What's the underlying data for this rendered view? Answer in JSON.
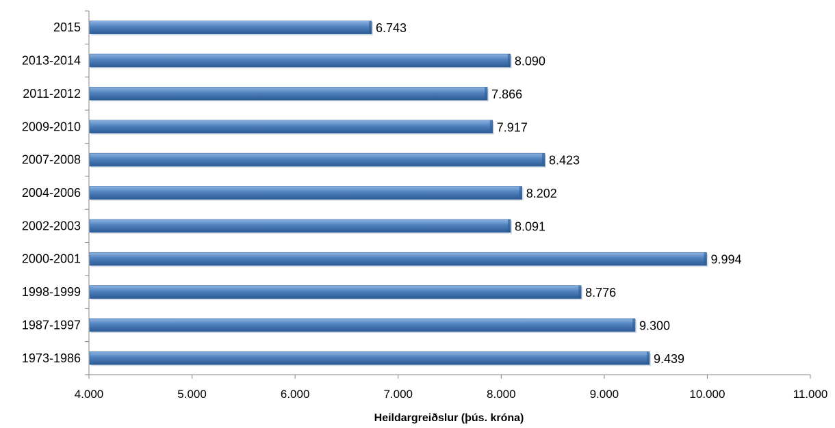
{
  "chart_data": {
    "type": "bar",
    "orientation": "horizontal",
    "categories": [
      "1973-1986",
      "1987-1997",
      "1998-1999",
      "2000-2001",
      "2002-2003",
      "2004-2006",
      "2007-2008",
      "2009-2010",
      "2011-2012",
      "2013-2014",
      "2015"
    ],
    "values": [
      9439,
      9300,
      8776,
      9994,
      8091,
      8202,
      8423,
      7917,
      7866,
      8090,
      6743
    ],
    "value_labels": [
      "9.439",
      "9.300",
      "8.776",
      "9.994",
      "8.091",
      "8.202",
      "8.423",
      "7.917",
      "7.866",
      "8.090",
      "6.743"
    ],
    "xlim": [
      4000,
      11000
    ],
    "x_ticks": [
      4000,
      5000,
      6000,
      7000,
      8000,
      9000,
      10000,
      11000
    ],
    "x_tick_labels": [
      "4.000",
      "5.000",
      "6.000",
      "7.000",
      "8.000",
      "9.000",
      "10.000",
      "11.000"
    ],
    "xlabel": "Heildargreiðslur (þús. króna)",
    "ylabel": "",
    "title": "",
    "grid": false,
    "legend": "none",
    "bar_color": "#4F81BD",
    "bar_color_light": "#8DB3E2",
    "bar_color_dark": "#2C5A93"
  }
}
